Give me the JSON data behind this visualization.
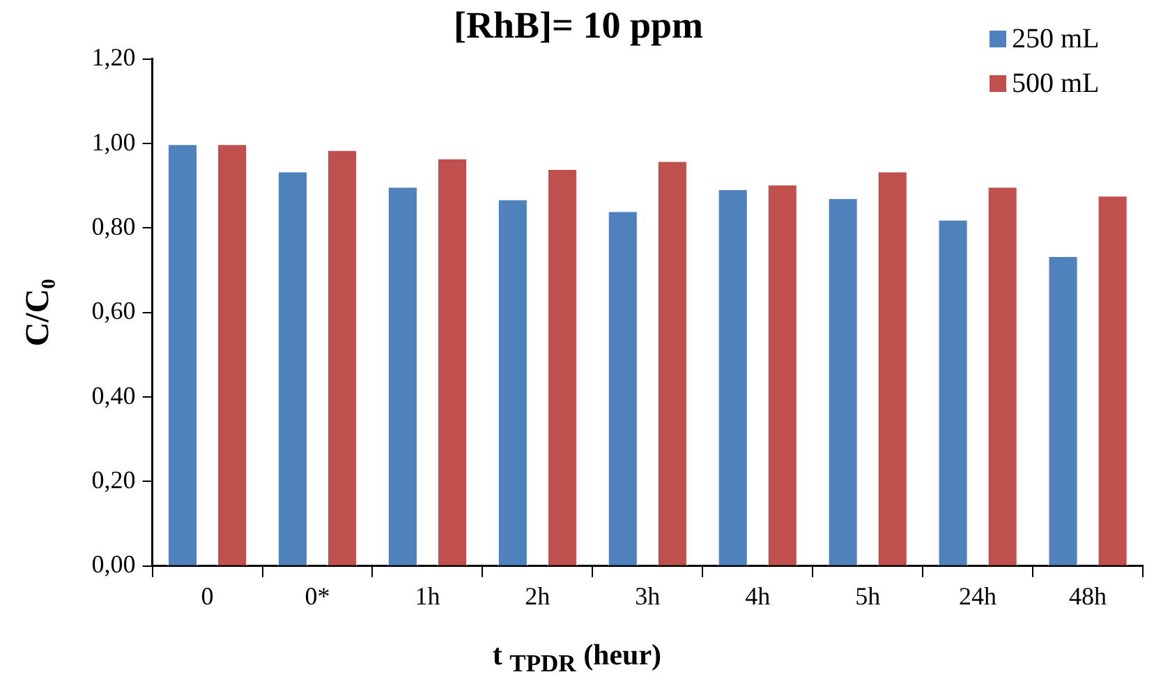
{
  "chart_data": {
    "type": "bar",
    "title": "[RhB]= 10 ppm",
    "xlabel": "t $_{TPDR}$ (heur)",
    "ylabel": "C/C₀",
    "categories": [
      "0",
      "0*",
      "1h",
      "2h",
      "3h",
      "4h",
      "5h",
      "24h",
      "48h"
    ],
    "series": [
      {
        "name": "250 mL",
        "color": "#4f81bd",
        "values": [
          1.0,
          0.935,
          0.899,
          0.869,
          0.841,
          0.893,
          0.872,
          0.821,
          0.735
        ]
      },
      {
        "name": "500 mL",
        "color": "#c0504d",
        "values": [
          1.0,
          0.986,
          0.966,
          0.941,
          0.96,
          0.904,
          0.935,
          0.899,
          0.878
        ]
      }
    ],
    "ylim": [
      0,
      1.2
    ],
    "yticks": [
      {
        "value": 0,
        "label": "0,00"
      },
      {
        "value": 0.2,
        "label": "0,20"
      },
      {
        "value": 0.4,
        "label": "0,40"
      },
      {
        "value": 0.6,
        "label": "0,60"
      },
      {
        "value": 0.8,
        "label": "0,80"
      },
      {
        "value": 1.0,
        "label": "1,00"
      },
      {
        "value": 1.2,
        "label": "1,20"
      }
    ],
    "grid": false,
    "legend": "top right"
  }
}
